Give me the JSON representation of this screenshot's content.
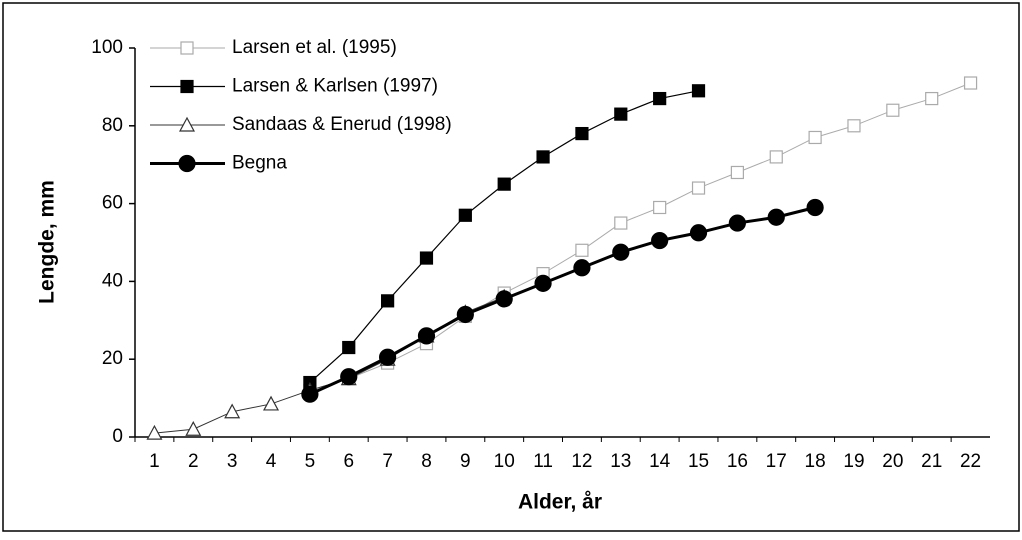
{
  "chart_data": {
    "type": "line",
    "xlabel": "Alder, år",
    "ylabel": "Lengde, mm",
    "categories": [
      1,
      2,
      3,
      4,
      5,
      6,
      7,
      8,
      9,
      10,
      11,
      12,
      13,
      14,
      15,
      16,
      17,
      18,
      19,
      20,
      21,
      22
    ],
    "ylim": [
      0,
      100
    ],
    "yticks": [
      0,
      20,
      40,
      60,
      80,
      100
    ],
    "grid": false,
    "legend": "upper left",
    "series": [
      {
        "name": "Larsen et al. (1995)",
        "color": "#aaaaaa",
        "marker": "square-open",
        "line_width": 1,
        "values": [
          null,
          null,
          null,
          null,
          12,
          15,
          19,
          24,
          31,
          37,
          42,
          48,
          55,
          59,
          64,
          68,
          72,
          77,
          80,
          84,
          87,
          91
        ]
      },
      {
        "name": "Larsen & Karlsen (1997)",
        "color": "#000000",
        "marker": "square-filled",
        "line_width": 1.2,
        "values": [
          null,
          null,
          null,
          null,
          14,
          23,
          35,
          46,
          57,
          65,
          72,
          78,
          83,
          87,
          89,
          null,
          null,
          null,
          null,
          null,
          null,
          null
        ]
      },
      {
        "name": "Sandaas & Enerud (1998)",
        "color": "#333333",
        "marker": "triangle-open",
        "line_width": 1,
        "values": [
          1,
          2,
          6.5,
          8.5,
          12,
          15,
          20,
          26,
          32,
          36,
          null,
          null,
          null,
          null,
          null,
          null,
          null,
          null,
          null,
          null,
          null,
          null
        ]
      },
      {
        "name": "Begna",
        "color": "#000000",
        "marker": "circle-filled",
        "line_width": 3,
        "values": [
          null,
          null,
          null,
          null,
          11,
          15.5,
          20.5,
          26,
          31.5,
          35.5,
          39.5,
          43.5,
          47.5,
          50.5,
          52.5,
          55,
          56.5,
          59,
          null,
          null,
          null,
          null
        ]
      }
    ]
  }
}
